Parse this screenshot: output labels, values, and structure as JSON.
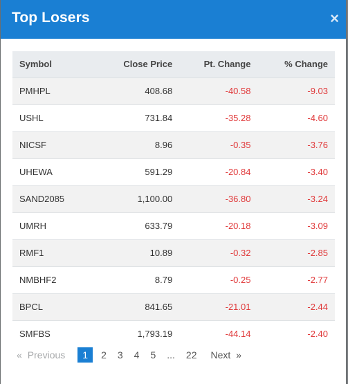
{
  "modal": {
    "title": "Top Losers",
    "close_label": "×"
  },
  "table": {
    "headers": {
      "symbol": "Symbol",
      "close_price": "Close Price",
      "pt_change": "Pt. Change",
      "pct_change": "% Change"
    },
    "rows": [
      {
        "symbol": "PMHPL",
        "close_price": "408.68",
        "pt_change": "-40.58",
        "pct_change": "-9.03"
      },
      {
        "symbol": "USHL",
        "close_price": "731.84",
        "pt_change": "-35.28",
        "pct_change": "-4.60"
      },
      {
        "symbol": "NICSF",
        "close_price": "8.96",
        "pt_change": "-0.35",
        "pct_change": "-3.76"
      },
      {
        "symbol": "UHEWA",
        "close_price": "591.29",
        "pt_change": "-20.84",
        "pct_change": "-3.40"
      },
      {
        "symbol": "SAND2085",
        "close_price": "1,100.00",
        "pt_change": "-36.80",
        "pct_change": "-3.24"
      },
      {
        "symbol": "UMRH",
        "close_price": "633.79",
        "pt_change": "-20.18",
        "pct_change": "-3.09"
      },
      {
        "symbol": "RMF1",
        "close_price": "10.89",
        "pt_change": "-0.32",
        "pct_change": "-2.85"
      },
      {
        "symbol": "NMBHF2",
        "close_price": "8.79",
        "pt_change": "-0.25",
        "pct_change": "-2.77"
      },
      {
        "symbol": "BPCL",
        "close_price": "841.65",
        "pt_change": "-21.01",
        "pct_change": "-2.44"
      },
      {
        "symbol": "SMFBS",
        "close_price": "1,793.19",
        "pt_change": "-44.14",
        "pct_change": "-2.40"
      }
    ]
  },
  "pagination": {
    "prev_arrow": "«",
    "previous": "Previous",
    "pages": [
      "1",
      "2",
      "3",
      "4",
      "5"
    ],
    "ellipsis": "...",
    "last": "22",
    "next": "Next",
    "next_arrow": "»",
    "active_page": "1"
  },
  "colors": {
    "header_bg": "#1a7fd3",
    "negative": "#e0393a"
  }
}
